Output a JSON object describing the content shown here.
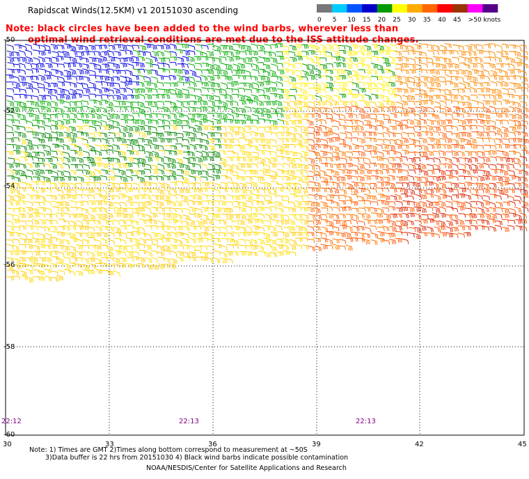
{
  "title": "Rapidscat Winds(12.5KM) v1 20151030 ascending",
  "note_line1": "Note: black circles have been added to the wind barbs, wherever less than",
  "note_line2": "optimal wind retrieval conditions are met due to the ISS attitude changes.",
  "colorbar": {
    "labels": [
      "0",
      "5",
      "10",
      "15",
      "20",
      "25",
      "30",
      "35",
      "40",
      "45",
      ">50 knots"
    ],
    "colors": [
      "#777777",
      "#00ccff",
      "#0055ff",
      "#0000cc",
      "#009900",
      "#ffff00",
      "#ffaa00",
      "#ff6600",
      "#ff0000",
      "#993300",
      "#ff00ff",
      "#550088"
    ]
  },
  "map": {
    "lat_labels": [
      "-50",
      "-52",
      "-54",
      "-56",
      "-58",
      "-60"
    ],
    "lon_labels": [
      "30",
      "33",
      "36",
      "39",
      "42",
      "45"
    ],
    "time_labels": [
      "22:12",
      "22:13",
      "22:13"
    ]
  },
  "footnotes": {
    "line1": "Note: 1) Times are GMT 2)Times along bottom correspond to measurement at ~50S",
    "line2": "3)Data buffer is 22 hrs from 20151030 4) Black wind barbs indicate possible contamination",
    "credit": "NOAA/NESDIS/Center for Satellite Applications and Research"
  }
}
